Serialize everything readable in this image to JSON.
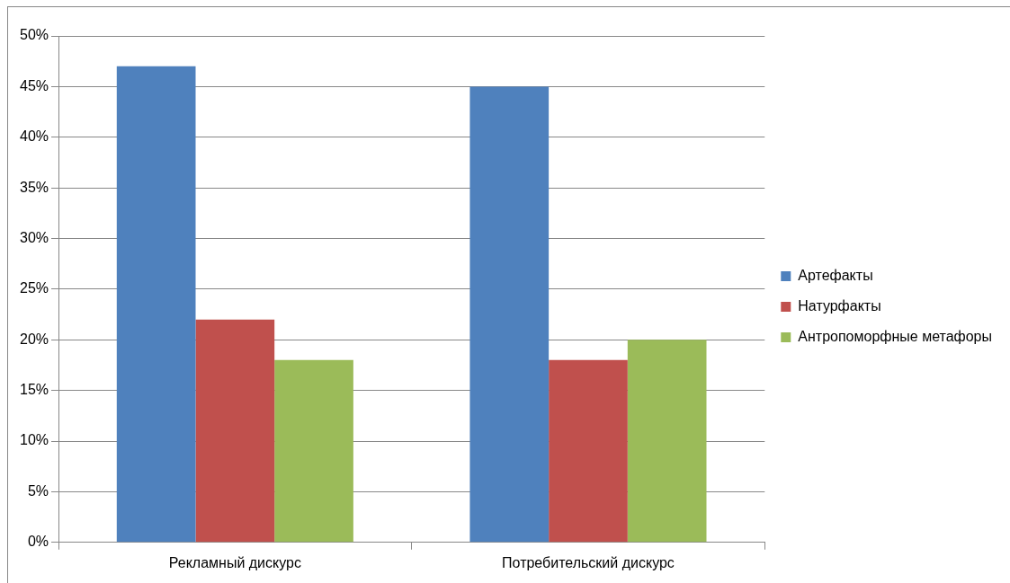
{
  "chart_data": {
    "type": "bar",
    "categories": [
      "Рекламный дискурс",
      "Потребительский дискурс"
    ],
    "series": [
      {
        "name": "Артефакты",
        "color": "#4f81bd",
        "values": [
          47,
          45
        ]
      },
      {
        "name": "Натурфакты",
        "color": "#c0504d",
        "values": [
          22,
          18
        ]
      },
      {
        "name": "Антропоморфные метафоры",
        "color": "#9bbb59",
        "values": [
          18,
          20
        ]
      }
    ],
    "ylim": [
      0,
      50
    ],
    "yticks": [
      {
        "value": 0,
        "label": "0%"
      },
      {
        "value": 5,
        "label": "5%"
      },
      {
        "value": 10,
        "label": "10%"
      },
      {
        "value": 15,
        "label": "15%"
      },
      {
        "value": 20,
        "label": "20%"
      },
      {
        "value": 25,
        "label": "25%"
      },
      {
        "value": 30,
        "label": "30%"
      },
      {
        "value": 35,
        "label": "35%"
      },
      {
        "value": 40,
        "label": "40%"
      },
      {
        "value": 45,
        "label": "45%"
      },
      {
        "value": 50,
        "label": "50%"
      }
    ],
    "grid": "y",
    "legend": "right"
  }
}
